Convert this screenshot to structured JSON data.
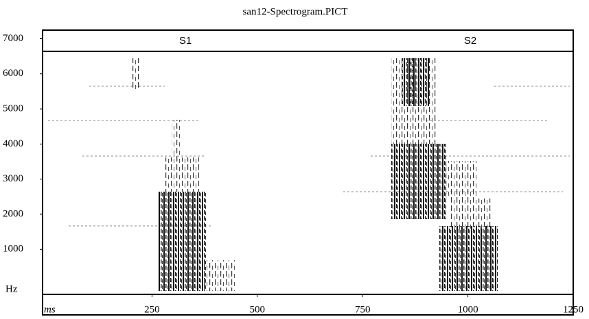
{
  "chart_data": {
    "type": "spectrogram",
    "title": "san12-Spectrogram.PICT",
    "segments": [
      "S1",
      "S2"
    ],
    "xlabel": "ms",
    "ylabel": "Hz",
    "xlim": [
      0,
      1250
    ],
    "xticks": [
      250,
      500,
      750,
      1000,
      1250
    ],
    "ylim": [
      0,
      7000
    ],
    "yticks": [
      1000,
      2000,
      3000,
      4000,
      5000,
      6000,
      7000
    ]
  }
}
